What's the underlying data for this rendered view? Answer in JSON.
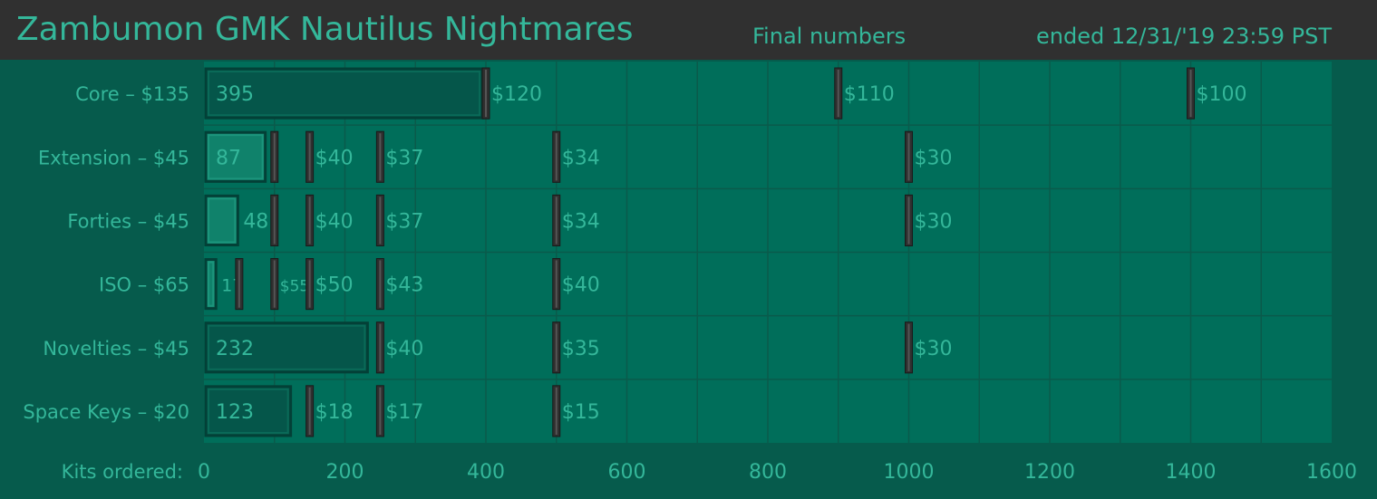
{
  "header": {
    "title": "Zambumon GMK Nautilus Nightmares",
    "subtitle": "Final numbers",
    "ended": "ended 12/31/'19  23:59 PST"
  },
  "colors": {
    "header_bg": "#303030",
    "background": "#065b4c",
    "plot_bg": "#006e5a",
    "text": "#34b79a",
    "bar_dark": "#05564a",
    "bar_light": "#10826b",
    "marker": "#2f2f2f"
  },
  "chart_data": {
    "type": "bar",
    "orientation": "horizontal",
    "xlabel": "Kits ordered:",
    "xlim": [
      0,
      1600
    ],
    "xticks": [
      "0",
      "200",
      "400",
      "600",
      "800",
      "1000",
      "1200",
      "1400",
      "1600"
    ],
    "grid": true,
    "categories": [
      "Core – $135",
      "Extension – $45",
      "Forties – $45",
      "ISO – $65",
      "Novelties – $45",
      "Space Keys – $20"
    ],
    "values": [
      395,
      87,
      48,
      17,
      232,
      123
    ],
    "value_labels": [
      "395",
      "87",
      "48",
      "17",
      "232",
      "123"
    ],
    "price_tiers": [
      [
        {
          "at": 400,
          "label": "$120"
        },
        {
          "at": 900,
          "label": "$110"
        },
        {
          "at": 1400,
          "label": "$100"
        }
      ],
      [
        {
          "at": 100,
          "label": ""
        },
        {
          "at": 150,
          "label": "$40"
        },
        {
          "at": 250,
          "label": "$37"
        },
        {
          "at": 500,
          "label": "$34"
        },
        {
          "at": 1000,
          "label": "$30"
        }
      ],
      [
        {
          "at": 100,
          "label": ""
        },
        {
          "at": 150,
          "label": "$40"
        },
        {
          "at": 250,
          "label": "$37"
        },
        {
          "at": 500,
          "label": "$34"
        },
        {
          "at": 1000,
          "label": "$30"
        }
      ],
      [
        {
          "at": 50,
          "label": ""
        },
        {
          "at": 100,
          "label": "$55"
        },
        {
          "at": 150,
          "label": "$50"
        },
        {
          "at": 250,
          "label": "$43"
        },
        {
          "at": 500,
          "label": "$40"
        }
      ],
      [
        {
          "at": 250,
          "label": "$40"
        },
        {
          "at": 500,
          "label": "$35"
        },
        {
          "at": 1000,
          "label": "$30"
        }
      ],
      [
        {
          "at": 150,
          "label": "$18"
        },
        {
          "at": 250,
          "label": "$17"
        },
        {
          "at": 500,
          "label": "$15"
        }
      ]
    ]
  }
}
